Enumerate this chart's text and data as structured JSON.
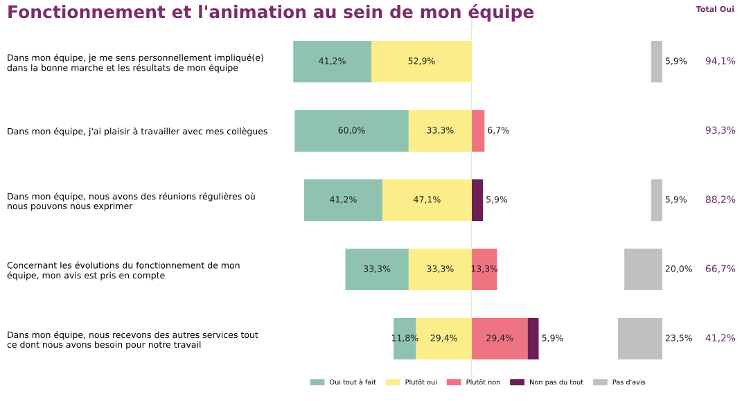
{
  "chart_data": [
    {
      "type": "bar",
      "orientation": "horizontal",
      "stacked": true,
      "title": "Fonctionnement et l'animation au sein de mon équipe",
      "categories": [
        "Dans mon équipe, je me sens personnellement impliqué(e)\ndans la bonne marche et les résultats de mon équipe",
        "Dans mon équipe, j'ai plaisir à travailler avec mes collègues",
        "Dans mon équipe, nous avons des réunions régulières où\nnous pouvons nous exprimer",
        "Concernant les évolutions du fonctionnement de mon\néquipe, mon avis est pris en compte",
        "Dans mon équipe, nous recevons des autres services tout\nce dont nous avons besoin pour notre travail"
      ],
      "series": [
        {
          "name": "Plutôt oui",
          "color": "#fbee8a",
          "values": [
            52.9,
            33.3,
            47.1,
            33.3,
            29.4
          ],
          "value_labels": [
            "52,9%",
            "33,3%",
            "47,1%",
            "33,3%",
            "29,4%"
          ]
        },
        {
          "name": "Oui tout à fait",
          "color": "#8fc3b0",
          "values": [
            41.2,
            60.0,
            41.2,
            33.3,
            11.8
          ],
          "value_labels": [
            "41,2%",
            "60,0%",
            "41,2%",
            "33,3%",
            "11,8%"
          ]
        }
      ],
      "xlim": [
        94.1,
        0
      ],
      "tick_labels": "y",
      "ref_lines": [
        {
          "axis": "x",
          "value": 0,
          "color": "#d9d9d9"
        }
      ],
      "legend": "bottom"
    },
    {
      "type": "bar",
      "orientation": "horizontal",
      "stacked": true,
      "categories": [
        null,
        null,
        null,
        null,
        null
      ],
      "series": [
        {
          "name": "Plutôt non",
          "color": "#ef7482",
          "values": [
            null,
            6.7,
            null,
            13.3,
            29.4
          ],
          "value_labels": [
            null,
            "6,7%",
            null,
            "13,3%",
            "29,4%"
          ]
        },
        {
          "name": "Non pas du tout",
          "color": "#6b1f55",
          "values": [
            null,
            null,
            5.9,
            null,
            5.9
          ],
          "value_labels": [
            null,
            null,
            "5,9%",
            null,
            "5,9%"
          ]
        }
      ],
      "xlim": [
        0,
        35.3
      ],
      "tick_labels": false,
      "legend": "bottom"
    },
    {
      "type": "bar",
      "orientation": "horizontal",
      "categories": [
        null,
        null,
        null,
        null,
        null
      ],
      "series": [
        {
          "name": "Pas d'avis",
          "color": "#c0c0c0",
          "values": [
            5.9,
            null,
            5.9,
            20.0,
            23.5
          ],
          "value_labels": [
            "5,9%",
            null,
            "5,9%",
            "20,0%",
            "23,5%"
          ]
        }
      ],
      "xlim": [
        23.5,
        0
      ],
      "tick_labels": false,
      "legend": "bottom",
      "annotations": [
        "Total Oui",
        "94,1%",
        "93,3%",
        "88,2%",
        "66,7%",
        "41,2%"
      ]
    }
  ]
}
